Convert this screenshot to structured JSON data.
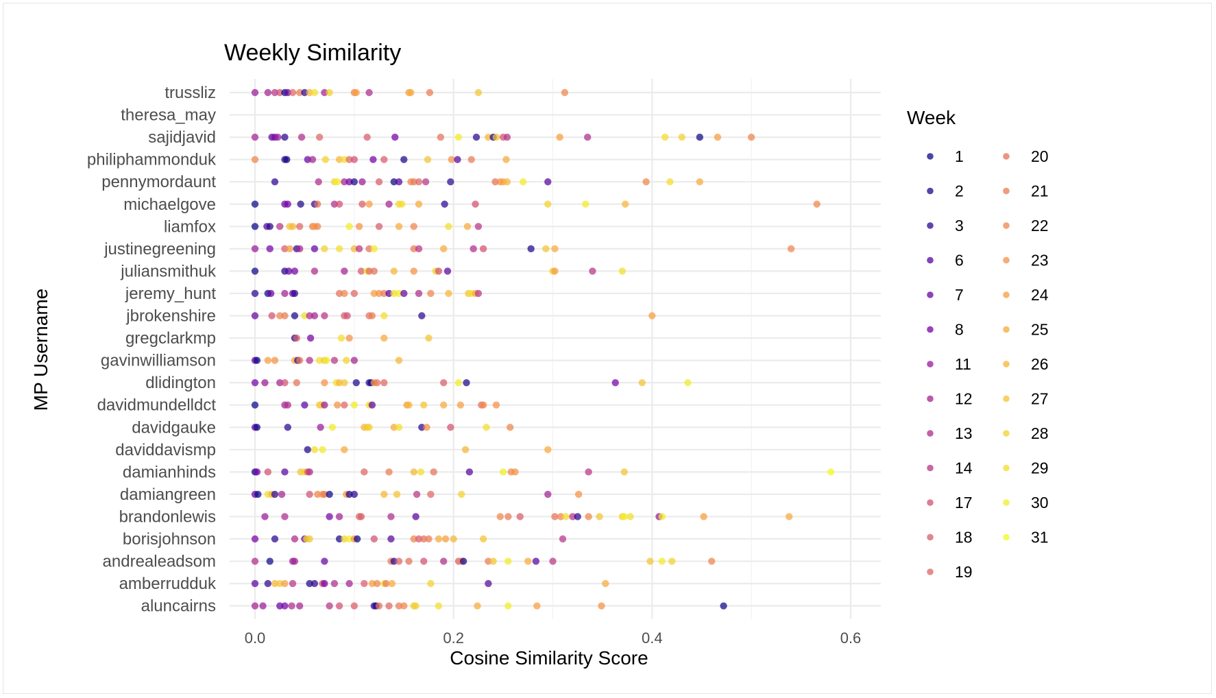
{
  "chart_data": {
    "type": "scatter",
    "title": "Weekly Similarity",
    "xlabel": "Cosine Similarity Score",
    "ylabel": "MP Username",
    "xlim": [
      -0.03,
      0.63
    ],
    "xticks": [
      "0.0",
      "0.2",
      "0.4",
      "0.6"
    ],
    "grid": true,
    "legend": {
      "title": "Week",
      "placement": "right",
      "weeks": [
        1,
        2,
        3,
        6,
        7,
        8,
        11,
        12,
        13,
        14,
        17,
        18,
        19,
        20,
        21,
        22,
        23,
        24,
        25,
        26,
        27,
        28,
        29,
        30,
        31
      ]
    },
    "categories": [
      "trussliz",
      "theresa_may",
      "sajidjavid",
      "philiphammonduk",
      "pennymordaunt",
      "michaelgove",
      "liamfox",
      "justinegreening",
      "juliansmithuk",
      "jeremy_hunt",
      "jbrokenshire",
      "gregclarkmp",
      "gavinwilliamson",
      "dlidington",
      "davidmundelldct",
      "davidgauke",
      "daviddavismp",
      "damianhinds",
      "damiangreen",
      "brandonlewis",
      "borisjohnson",
      "andrealeadsom",
      "amberrudduk",
      "aluncairns"
    ],
    "points": [
      {
        "mp": "trussliz",
        "x": [
          0.0,
          0.013,
          0.02,
          0.025,
          0.03,
          0.033,
          0.038,
          0.045,
          0.05,
          0.055,
          0.06,
          0.07,
          0.075,
          0.1,
          0.102,
          0.115,
          0.155,
          0.157,
          0.176,
          0.225,
          0.312
        ],
        "week": [
          11,
          12,
          14,
          17,
          1,
          7,
          19,
          21,
          3,
          26,
          29,
          12,
          28,
          22,
          24,
          13,
          24,
          25,
          21,
          27,
          22
        ]
      },
      {
        "mp": "sajidjavid",
        "x": [
          0.0,
          0.017,
          0.02,
          0.023,
          0.03,
          0.047,
          0.065,
          0.113,
          0.141,
          0.187,
          0.205,
          0.223,
          0.235,
          0.24,
          0.243,
          0.25,
          0.254,
          0.307,
          0.335,
          0.413,
          0.43,
          0.448,
          0.466,
          0.5
        ],
        "week": [
          12,
          6,
          8,
          11,
          3,
          13,
          19,
          18,
          8,
          20,
          30,
          3,
          26,
          2,
          27,
          17,
          14,
          24,
          13,
          29,
          28,
          1,
          24,
          22
        ]
      },
      {
        "mp": "philiphammonduk",
        "x": [
          0.0,
          0.03,
          0.032,
          0.053,
          0.058,
          0.071,
          0.085,
          0.09,
          0.095,
          0.1,
          0.119,
          0.13,
          0.15,
          0.174,
          0.198,
          0.204,
          0.218,
          0.253
        ],
        "week": [
          22,
          3,
          1,
          7,
          12,
          28,
          26,
          29,
          19,
          17,
          8,
          18,
          2,
          27,
          23,
          6,
          21,
          25
        ]
      },
      {
        "mp": "pennymordaunt",
        "x": [
          0.02,
          0.064,
          0.08,
          0.083,
          0.09,
          0.095,
          0.1,
          0.108,
          0.125,
          0.14,
          0.145,
          0.157,
          0.16,
          0.165,
          0.172,
          0.197,
          0.242,
          0.247,
          0.25,
          0.254,
          0.27,
          0.295,
          0.394,
          0.418,
          0.448
        ],
        "week": [
          3,
          13,
          28,
          30,
          12,
          8,
          2,
          11,
          18,
          1,
          6,
          22,
          21,
          19,
          14,
          3,
          20,
          23,
          24,
          26,
          30,
          6,
          22,
          29,
          25
        ]
      },
      {
        "mp": "michaelgove",
        "x": [
          0.0,
          0.03,
          0.033,
          0.046,
          0.06,
          0.063,
          0.08,
          0.085,
          0.108,
          0.115,
          0.135,
          0.145,
          0.148,
          0.165,
          0.191,
          0.222,
          0.295,
          0.333,
          0.373,
          0.566
        ],
        "week": [
          1,
          7,
          8,
          2,
          3,
          20,
          13,
          17,
          18,
          24,
          12,
          28,
          29,
          25,
          3,
          17,
          28,
          30,
          26,
          22
        ]
      },
      {
        "mp": "liamfox",
        "x": [
          0.0,
          0.012,
          0.015,
          0.025,
          0.035,
          0.038,
          0.045,
          0.058,
          0.06,
          0.063,
          0.095,
          0.105,
          0.125,
          0.145,
          0.16,
          0.195,
          0.214,
          0.225
        ],
        "week": [
          1,
          6,
          3,
          14,
          27,
          26,
          19,
          21,
          24,
          22,
          30,
          23,
          18,
          25,
          22,
          29,
          25,
          14
        ]
      },
      {
        "mp": "justinegreening",
        "x": [
          0.0,
          0.015,
          0.03,
          0.035,
          0.042,
          0.045,
          0.06,
          0.07,
          0.085,
          0.1,
          0.105,
          0.115,
          0.12,
          0.16,
          0.165,
          0.19,
          0.22,
          0.23,
          0.278,
          0.293,
          0.302,
          0.54
        ],
        "week": [
          11,
          8,
          18,
          24,
          3,
          12,
          7,
          28,
          29,
          26,
          14,
          20,
          30,
          21,
          14,
          25,
          13,
          17,
          2,
          27,
          25,
          22
        ]
      },
      {
        "mp": "juliansmithuk",
        "x": [
          0.0,
          0.03,
          0.034,
          0.04,
          0.06,
          0.09,
          0.107,
          0.113,
          0.115,
          0.12,
          0.14,
          0.16,
          0.182,
          0.185,
          0.194,
          0.3,
          0.302,
          0.34,
          0.37
        ],
        "week": [
          1,
          2,
          7,
          8,
          13,
          12,
          18,
          30,
          19,
          20,
          26,
          23,
          28,
          17,
          6,
          28,
          24,
          14,
          29
        ]
      },
      {
        "mp": "jeremy_hunt",
        "x": [
          0.0,
          0.013,
          0.016,
          0.03,
          0.038,
          0.04,
          0.085,
          0.09,
          0.1,
          0.12,
          0.125,
          0.13,
          0.135,
          0.14,
          0.145,
          0.15,
          0.165,
          0.177,
          0.195,
          0.215,
          0.218,
          0.222,
          0.225
        ],
        "week": [
          3,
          1,
          7,
          12,
          8,
          3,
          20,
          22,
          19,
          24,
          23,
          21,
          6,
          29,
          30,
          7,
          13,
          22,
          26,
          27,
          29,
          25,
          14
        ]
      },
      {
        "mp": "jbrokenshire",
        "x": [
          0.0,
          0.017,
          0.025,
          0.03,
          0.04,
          0.05,
          0.055,
          0.06,
          0.07,
          0.09,
          0.093,
          0.115,
          0.118,
          0.13,
          0.168,
          0.4
        ],
        "week": [
          7,
          17,
          22,
          21,
          2,
          29,
          13,
          12,
          14,
          18,
          17,
          20,
          21,
          29,
          3,
          24
        ]
      },
      {
        "mp": "gregclarkmp",
        "x": [
          0.04,
          0.042,
          0.056,
          0.087,
          0.095,
          0.13,
          0.175
        ],
        "week": [
          2,
          18,
          8,
          29,
          23,
          25,
          27
        ]
      },
      {
        "mp": "gavinwilliamson",
        "x": [
          0.0,
          0.002,
          0.013,
          0.02,
          0.04,
          0.043,
          0.045,
          0.055,
          0.065,
          0.07,
          0.072,
          0.08,
          0.092,
          0.1,
          0.145
        ],
        "week": [
          7,
          1,
          24,
          23,
          25,
          3,
          21,
          13,
          29,
          27,
          30,
          14,
          28,
          12,
          26
        ]
      },
      {
        "mp": "dlidington",
        "x": [
          0.0,
          0.01,
          0.025,
          0.03,
          0.042,
          0.07,
          0.082,
          0.085,
          0.09,
          0.102,
          0.115,
          0.117,
          0.12,
          0.123,
          0.13,
          0.19,
          0.205,
          0.213,
          0.363,
          0.39,
          0.436
        ],
        "week": [
          8,
          11,
          12,
          17,
          20,
          23,
          29,
          26,
          27,
          2,
          3,
          1,
          24,
          20,
          19,
          18,
          30,
          2,
          8,
          27,
          30
        ]
      },
      {
        "mp": "davidmundelldct",
        "x": [
          0.0,
          0.03,
          0.033,
          0.05,
          0.065,
          0.067,
          0.07,
          0.083,
          0.09,
          0.1,
          0.115,
          0.118,
          0.153,
          0.155,
          0.17,
          0.19,
          0.207,
          0.228,
          0.23,
          0.243
        ],
        "week": [
          1,
          12,
          13,
          6,
          27,
          28,
          11,
          23,
          19,
          30,
          29,
          6,
          24,
          26,
          27,
          25,
          24,
          20,
          22,
          23
        ]
      },
      {
        "mp": "davidgauke",
        "x": [
          0.0,
          0.002,
          0.033,
          0.066,
          0.078,
          0.11,
          0.113,
          0.115,
          0.14,
          0.145,
          0.168,
          0.173,
          0.197,
          0.233,
          0.257
        ],
        "week": [
          7,
          1,
          3,
          11,
          30,
          26,
          27,
          28,
          25,
          29,
          3,
          23,
          17,
          29,
          22
        ]
      },
      {
        "mp": "daviddavismp",
        "x": [
          0.053,
          0.06,
          0.068,
          0.09,
          0.212,
          0.295
        ],
        "week": [
          2,
          29,
          30,
          25,
          26,
          25
        ]
      },
      {
        "mp": "damianhinds",
        "x": [
          0.0,
          0.002,
          0.013,
          0.03,
          0.046,
          0.05,
          0.053,
          0.055,
          0.11,
          0.135,
          0.16,
          0.167,
          0.18,
          0.216,
          0.25,
          0.258,
          0.262,
          0.336,
          0.372,
          0.58
        ],
        "week": [
          1,
          8,
          17,
          6,
          27,
          28,
          18,
          13,
          19,
          21,
          26,
          29,
          20,
          6,
          30,
          22,
          23,
          14,
          27,
          31
        ]
      },
      {
        "mp": "damiangreen",
        "x": [
          0.0,
          0.003,
          0.013,
          0.017,
          0.02,
          0.027,
          0.055,
          0.063,
          0.068,
          0.07,
          0.075,
          0.092,
          0.095,
          0.1,
          0.13,
          0.143,
          0.163,
          0.177,
          0.208,
          0.295,
          0.326
        ],
        "week": [
          7,
          1,
          29,
          26,
          3,
          12,
          17,
          22,
          23,
          21,
          1,
          24,
          2,
          3,
          26,
          27,
          14,
          19,
          28,
          12,
          23
        ]
      },
      {
        "mp": "brandonlewis",
        "x": [
          0.01,
          0.03,
          0.075,
          0.085,
          0.105,
          0.107,
          0.137,
          0.162,
          0.247,
          0.255,
          0.267,
          0.302,
          0.308,
          0.313,
          0.32,
          0.325,
          0.336,
          0.347,
          0.37,
          0.372,
          0.378,
          0.407,
          0.41,
          0.452,
          0.538
        ],
        "week": [
          11,
          13,
          8,
          12,
          19,
          18,
          13,
          6,
          22,
          21,
          18,
          20,
          22,
          29,
          14,
          3,
          22,
          27,
          28,
          30,
          29,
          11,
          30,
          24,
          25
        ]
      },
      {
        "mp": "borisjohnson",
        "x": [
          0.0,
          0.02,
          0.04,
          0.05,
          0.052,
          0.055,
          0.085,
          0.09,
          0.095,
          0.1,
          0.103,
          0.12,
          0.137,
          0.16,
          0.165,
          0.17,
          0.175,
          0.185,
          0.192,
          0.2,
          0.23,
          0.31
        ],
        "week": [
          8,
          3,
          13,
          7,
          29,
          27,
          2,
          28,
          30,
          23,
          1,
          17,
          6,
          22,
          18,
          20,
          21,
          25,
          24,
          26,
          27,
          14
        ]
      },
      {
        "mp": "andrealeadsom",
        "x": [
          0.0,
          0.015,
          0.038,
          0.04,
          0.07,
          0.137,
          0.14,
          0.145,
          0.155,
          0.17,
          0.19,
          0.205,
          0.208,
          0.21,
          0.235,
          0.24,
          0.255,
          0.275,
          0.283,
          0.3,
          0.398,
          0.41,
          0.42,
          0.46
        ],
        "week": [
          13,
          1,
          11,
          12,
          7,
          21,
          3,
          19,
          20,
          17,
          13,
          18,
          22,
          2,
          21,
          27,
          30,
          25,
          6,
          14,
          27,
          30,
          28,
          22
        ]
      },
      {
        "mp": "amberrudduk",
        "x": [
          0.0,
          0.013,
          0.02,
          0.025,
          0.03,
          0.038,
          0.055,
          0.06,
          0.068,
          0.07,
          0.08,
          0.095,
          0.11,
          0.118,
          0.123,
          0.13,
          0.132,
          0.138,
          0.177,
          0.235,
          0.353
        ],
        "week": [
          6,
          3,
          26,
          27,
          24,
          14,
          2,
          3,
          17,
          8,
          13,
          12,
          18,
          24,
          22,
          29,
          21,
          25,
          28,
          6,
          25
        ]
      },
      {
        "mp": "aluncairns",
        "x": [
          0.0,
          0.008,
          0.025,
          0.03,
          0.037,
          0.045,
          0.075,
          0.085,
          0.1,
          0.12,
          0.122,
          0.125,
          0.135,
          0.145,
          0.15,
          0.16,
          0.162,
          0.185,
          0.224,
          0.255,
          0.284,
          0.349,
          0.472
        ],
        "week": [
          12,
          11,
          7,
          8,
          13,
          12,
          14,
          17,
          18,
          3,
          2,
          20,
          19,
          21,
          22,
          27,
          28,
          29,
          25,
          30,
          24,
          23,
          1
        ]
      }
    ]
  }
}
